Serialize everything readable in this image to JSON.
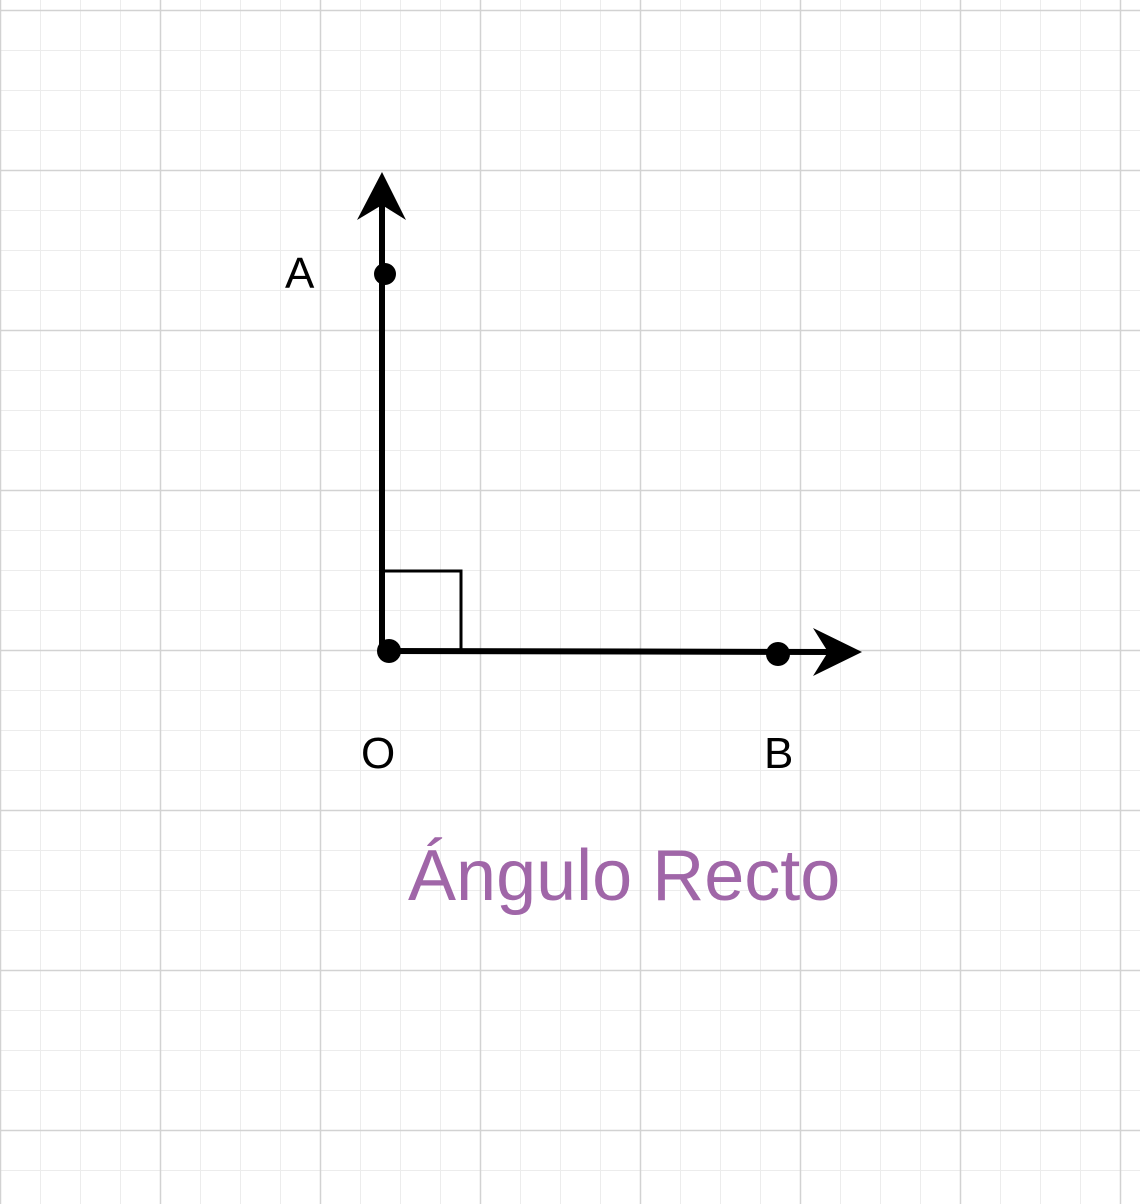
{
  "diagram": {
    "labels": {
      "a": "A",
      "o": "O",
      "b": "B"
    },
    "caption": "Ángulo Recto",
    "colors": {
      "background": "#ffffff",
      "minor_grid": "#ececec",
      "major_grid": "#d2d2d2",
      "ink": "#000000",
      "caption": "#a066a8"
    },
    "icons": {
      "ray_oa_head": "arrowhead-up",
      "ray_ob_head": "arrowhead-right",
      "right_angle_mark": "square-corner"
    }
  }
}
